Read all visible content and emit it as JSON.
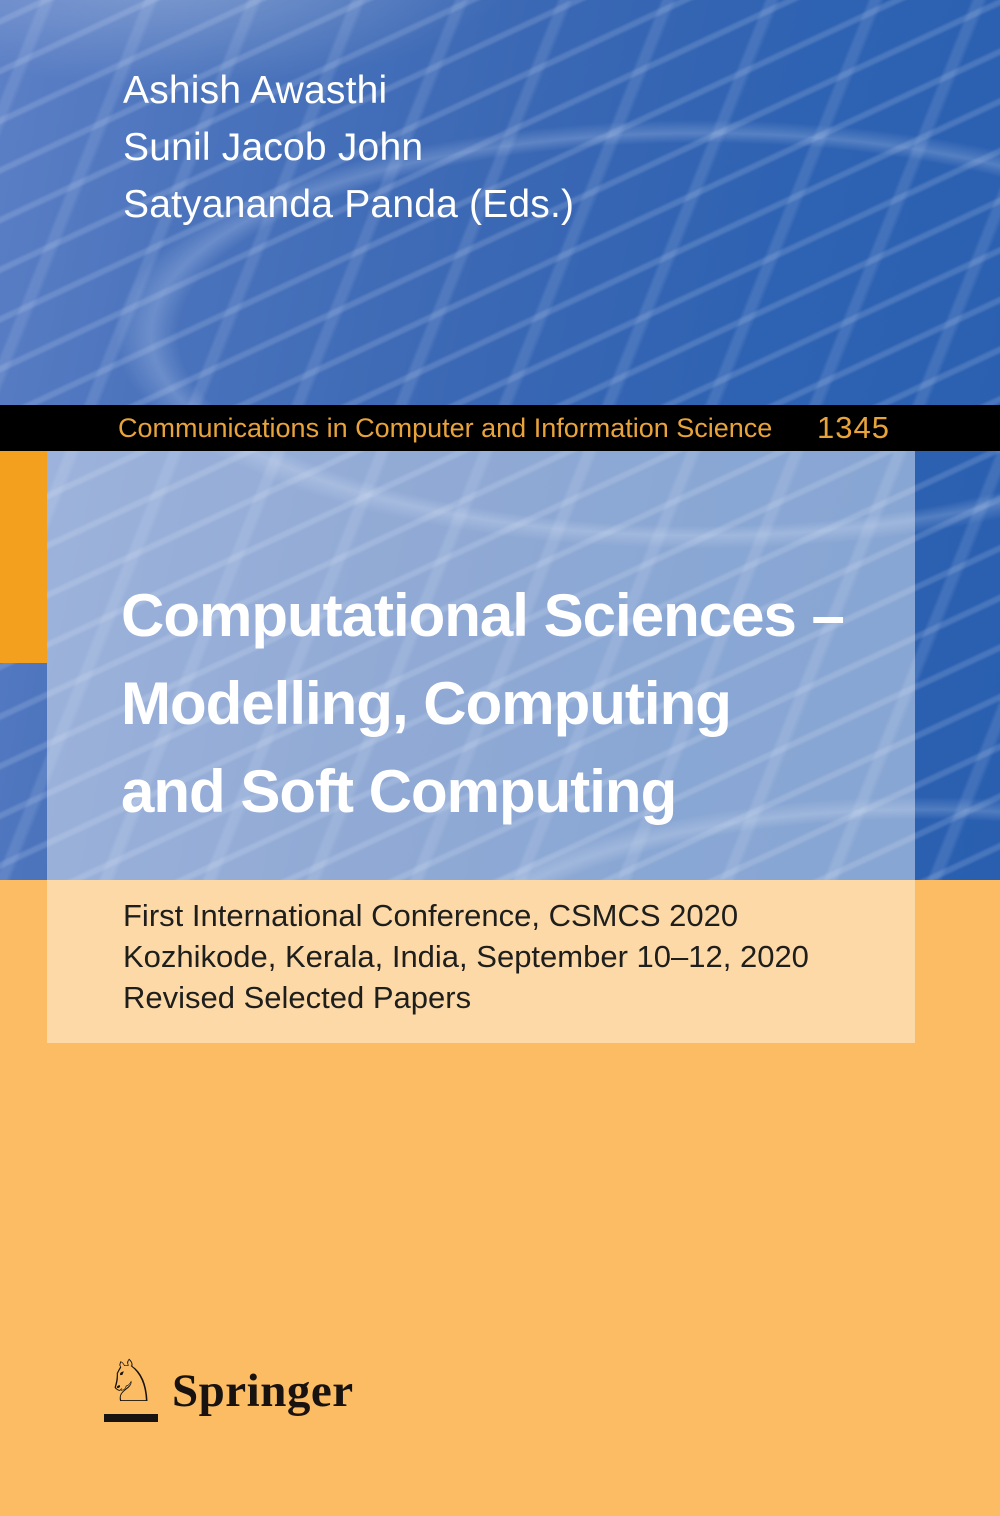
{
  "cover": {
    "editors": [
      "Ashish Awasthi",
      "Sunil Jacob John",
      "Satyananda Panda (Eds.)"
    ],
    "series": {
      "name": "Communications in Computer and Information Science",
      "volume": "1345"
    },
    "title_lines": [
      "Computational Sciences –",
      "Modelling, Computing",
      "and Soft Computing"
    ],
    "subtitle_lines": [
      "First International Conference, CSMCS 2020",
      "Kozhikode, Kerala, India, September 10–12, 2020",
      "Revised Selected Papers"
    ],
    "publisher": {
      "name": "Springer",
      "horse_glyph": "♘"
    },
    "colors": {
      "blue_base": "#3B68B4",
      "blue_deep": "#2A5FB0",
      "series_bar_bg": "#000000",
      "series_text": "#E8A33B",
      "spine_tab_orange": "#F3A01E",
      "bottom_orange": "#FBBC63",
      "panel_overlay_white": "rgba(255,255,255,0.44)",
      "title_text": "#FFFFFF",
      "subtitle_text": "#1E1E1C",
      "logo_color": "#181310"
    }
  }
}
